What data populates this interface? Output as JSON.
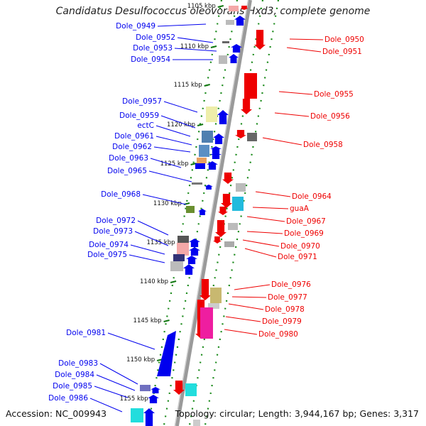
{
  "title": "Candidatus Desulfococcus oleovorans Hxd3, complete genome",
  "accession": "Accession: NC_009943",
  "topology": "Topology: circular; Length: 3,944,167 bp; Genes: 3,317",
  "colors": {
    "forward": "#0000ee",
    "reverse": "#ee0000",
    "backbone": "#9a9a9a",
    "ticks": "#1a8a1a"
  },
  "scale_labels": [
    "1105 kbp",
    "1110 kbp",
    "1115 kbp",
    "1120 kbp",
    "1125 kbp",
    "1130 kbp",
    "1135 kbp",
    "1140 kbp",
    "1145 kbp",
    "1150 kbp",
    "1155 kbp"
  ],
  "forward_labels": [
    "Dole_0949",
    "Dole_0952",
    "Dole_0953",
    "Dole_0954",
    "Dole_0957",
    "Dole_0959",
    "ectC",
    "Dole_0961",
    "Dole_0962",
    "Dole_0963",
    "Dole_0965",
    "Dole_0968",
    "Dole_0972",
    "Dole_0973",
    "Dole_0974",
    "Dole_0975",
    "Dole_0981",
    "Dole_0983",
    "Dole_0984",
    "Dole_0985",
    "Dole_0986"
  ],
  "reverse_labels": [
    "Dole_0950",
    "Dole_0951",
    "Dole_0955",
    "Dole_0956",
    "Dole_0958",
    "Dole_0964",
    "guaA",
    "Dole_0967",
    "Dole_0969",
    "Dole_0970",
    "Dole_0971",
    "Dole_0976",
    "Dole_0977",
    "Dole_0978",
    "Dole_0979",
    "Dole_0980"
  ]
}
